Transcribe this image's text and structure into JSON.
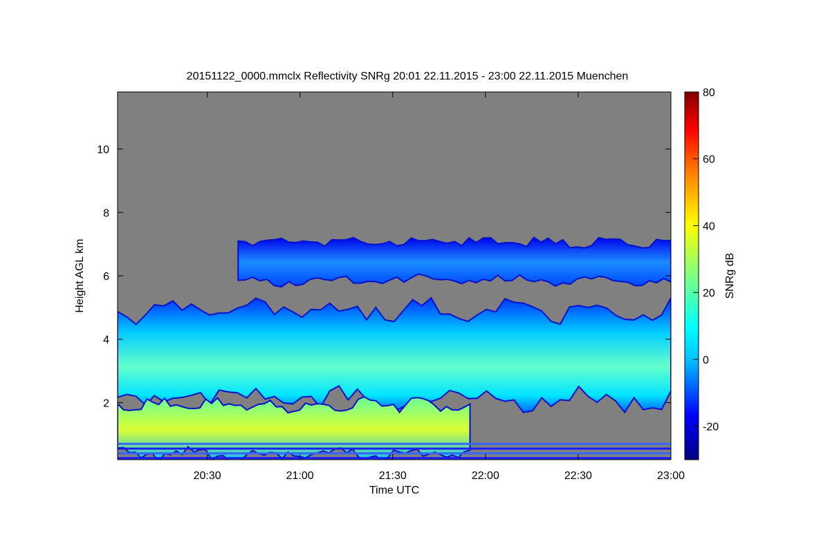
{
  "chart_data": {
    "type": "heatmap",
    "title": "20151122_0000.mmclx Reflectivity SNRg   20:01 22.11.2015 - 23:00 22.11.2015 Muenchen",
    "xlabel": "Time UTC",
    "ylabel": "Height AGL km",
    "xlim": [
      "20:01",
      "23:00"
    ],
    "ylim": [
      0.2,
      11.8
    ],
    "x_ticks": [
      "20:30",
      "21:00",
      "21:30",
      "22:00",
      "22:30",
      "23:00"
    ],
    "y_ticks": [
      2,
      4,
      6,
      8,
      10
    ],
    "colorbar": {
      "label": "SNRg dB",
      "range": [
        -30,
        80
      ],
      "ticks": [
        -20,
        0,
        20,
        40,
        60,
        80
      ],
      "colormap": [
        "#000080",
        "#0000ff",
        "#00bfff",
        "#00ffff",
        "#7fff7f",
        "#ffff00",
        "#ff7f00",
        "#ff0000",
        "#800000"
      ]
    },
    "background_color": "#808080",
    "layers": [
      {
        "name": "upper cloud layer",
        "height_km": [
          5.8,
          7.1
        ],
        "time": [
          "20:40",
          "23:00"
        ],
        "snr_db": [
          -20,
          5
        ]
      },
      {
        "name": "mid cloud layer",
        "height_km": [
          2.0,
          5.0
        ],
        "time": [
          "20:01",
          "23:00"
        ],
        "snr_db": [
          -15,
          25
        ]
      },
      {
        "name": "lower precipitation band",
        "height_km": [
          0.3,
          2.0
        ],
        "time": [
          "20:01",
          "21:55"
        ],
        "snr_db": [
          -10,
          35
        ]
      },
      {
        "name": "surface clutter lines",
        "height_km": [
          0.25,
          0.7
        ],
        "time": [
          "20:01",
          "23:00"
        ],
        "snr_db": [
          -25,
          -15
        ]
      }
    ]
  }
}
